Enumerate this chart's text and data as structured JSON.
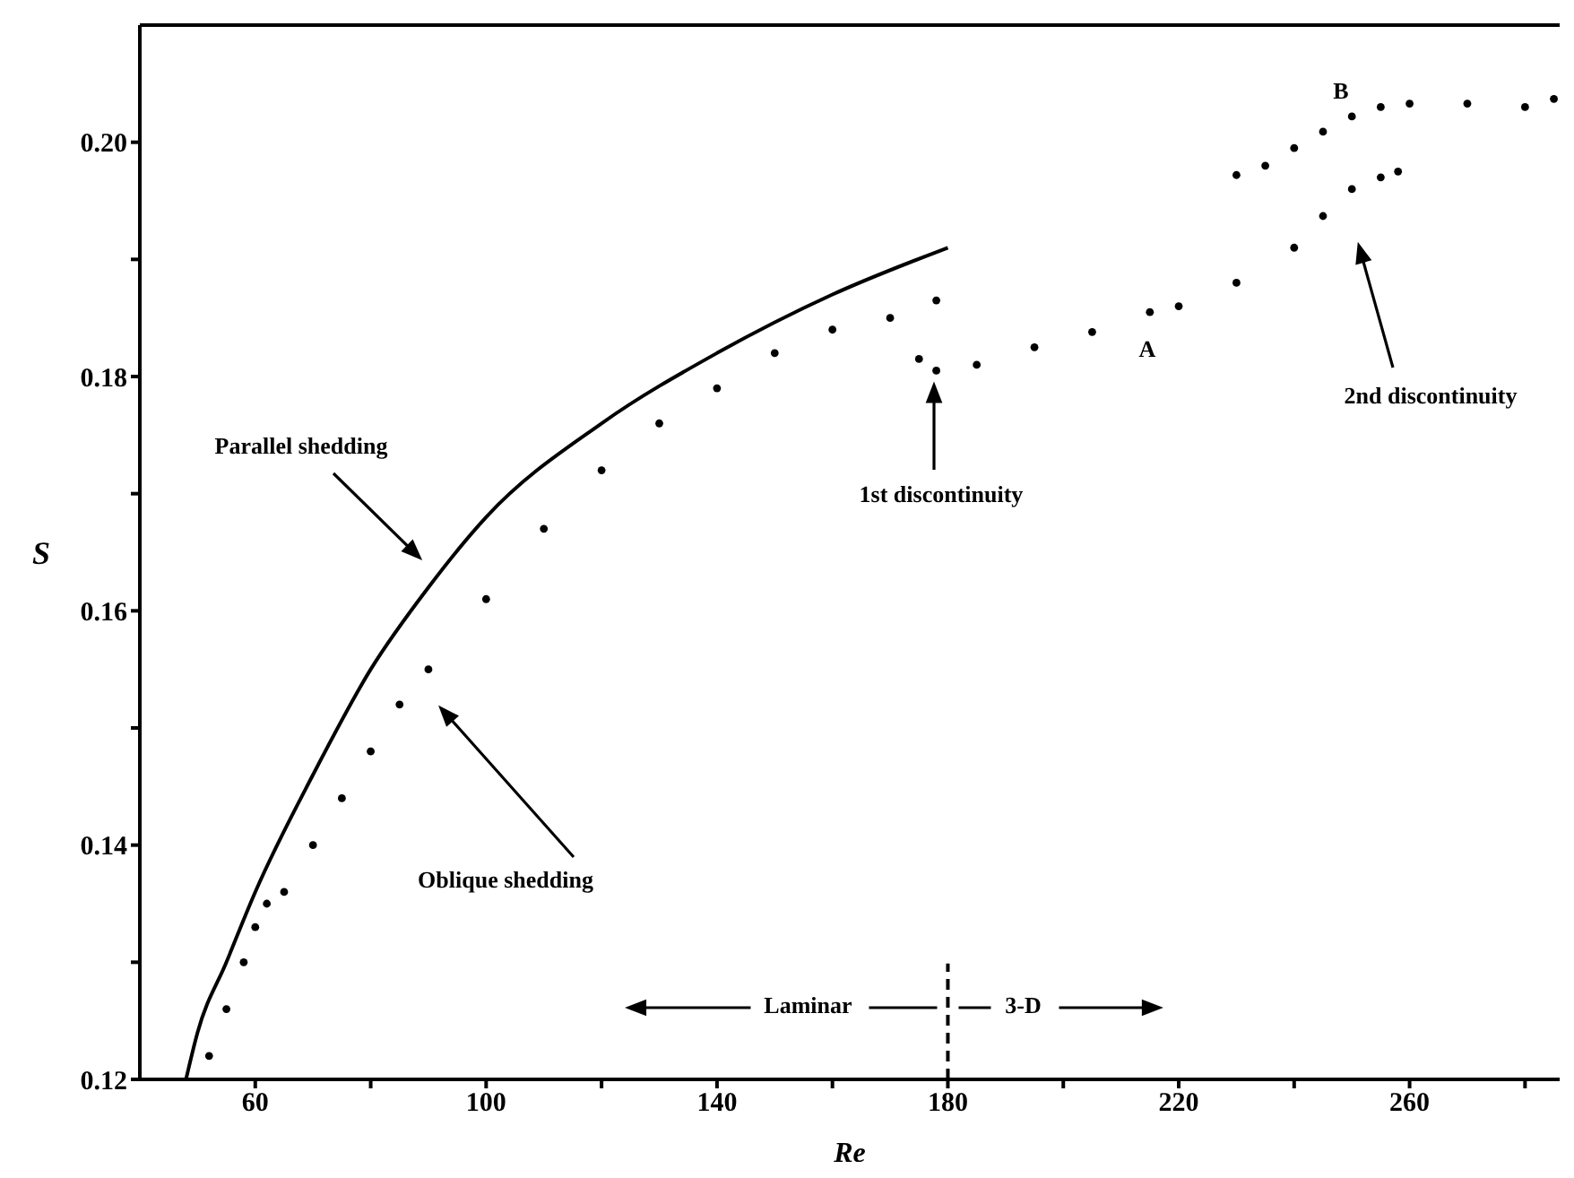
{
  "chart_data": {
    "type": "scatter",
    "xlabel": "Re",
    "ylabel": "S",
    "xlim": [
      40,
      286
    ],
    "ylim": [
      0.12,
      0.21
    ],
    "xticks": [
      60,
      {
        "value": 80,
        "label": null
      },
      100,
      {
        "value": 120,
        "label": null
      },
      140,
      {
        "value": 160,
        "label": null
      },
      180,
      {
        "value": 200,
        "label": null
      },
      220,
      {
        "value": 240,
        "label": null
      },
      260,
      {
        "value": 280,
        "label": null
      }
    ],
    "yticks": [
      0.12,
      {
        "value": 0.13,
        "label": null
      },
      0.14,
      {
        "value": 0.15,
        "label": null
      },
      0.16,
      {
        "value": 0.17,
        "label": null
      },
      0.18,
      {
        "value": 0.19,
        "label": null
      },
      {
        "value": 0.2,
        "label": "0.20"
      }
    ],
    "grid": false,
    "legend": false,
    "marker": "circle",
    "series": [
      {
        "type": "line",
        "color": "#000000",
        "line_style": "solid",
        "marker": "none",
        "x": [
          48,
          50,
          55,
          60,
          70,
          80,
          90,
          100,
          120,
          140,
          160,
          180
        ],
        "values": [
          0.12,
          0.124,
          0.13,
          0.136,
          0.146,
          0.155,
          0.162,
          0.168,
          0.176,
          0.182,
          0.187,
          0.191
        ]
      },
      {
        "type": "scatter",
        "color": "#000000",
        "x": [
          52,
          55,
          58,
          60,
          62,
          65,
          70,
          75,
          80,
          85,
          90,
          100,
          110,
          120,
          130,
          140,
          150,
          160,
          170,
          178
        ],
        "values": [
          0.122,
          0.126,
          0.13,
          0.133,
          0.135,
          0.136,
          0.14,
          0.144,
          0.148,
          0.152,
          0.155,
          0.161,
          0.167,
          0.172,
          0.176,
          0.179,
          0.182,
          0.184,
          0.185,
          0.1865
        ]
      },
      {
        "type": "scatter",
        "color": "#000000",
        "x": [
          175,
          178,
          185,
          195,
          205,
          215,
          220,
          230,
          240,
          245,
          250,
          255,
          258
        ],
        "values": [
          0.1815,
          0.1805,
          0.181,
          0.1825,
          0.1838,
          0.1855,
          0.186,
          0.188,
          0.191,
          0.1937,
          0.196,
          0.197,
          0.1975
        ]
      },
      {
        "type": "scatter",
        "color": "#000000",
        "x": [
          230,
          235,
          240,
          245,
          250,
          255,
          260,
          270,
          280,
          285
        ],
        "values": [
          0.1972,
          0.198,
          0.1995,
          0.2009,
          0.2022,
          0.203,
          0.2033,
          0.2033,
          0.203,
          0.2037
        ]
      }
    ],
    "ref_lines": [
      {
        "axis": "x",
        "value": 180,
        "line_style": "dashed",
        "color": "#000000"
      }
    ],
    "annotations": [
      "Parallel shedding",
      "Oblique shedding",
      "1st discontinuity",
      "A",
      "B",
      "2nd discontinuity",
      "Laminar",
      "3-D"
    ]
  }
}
